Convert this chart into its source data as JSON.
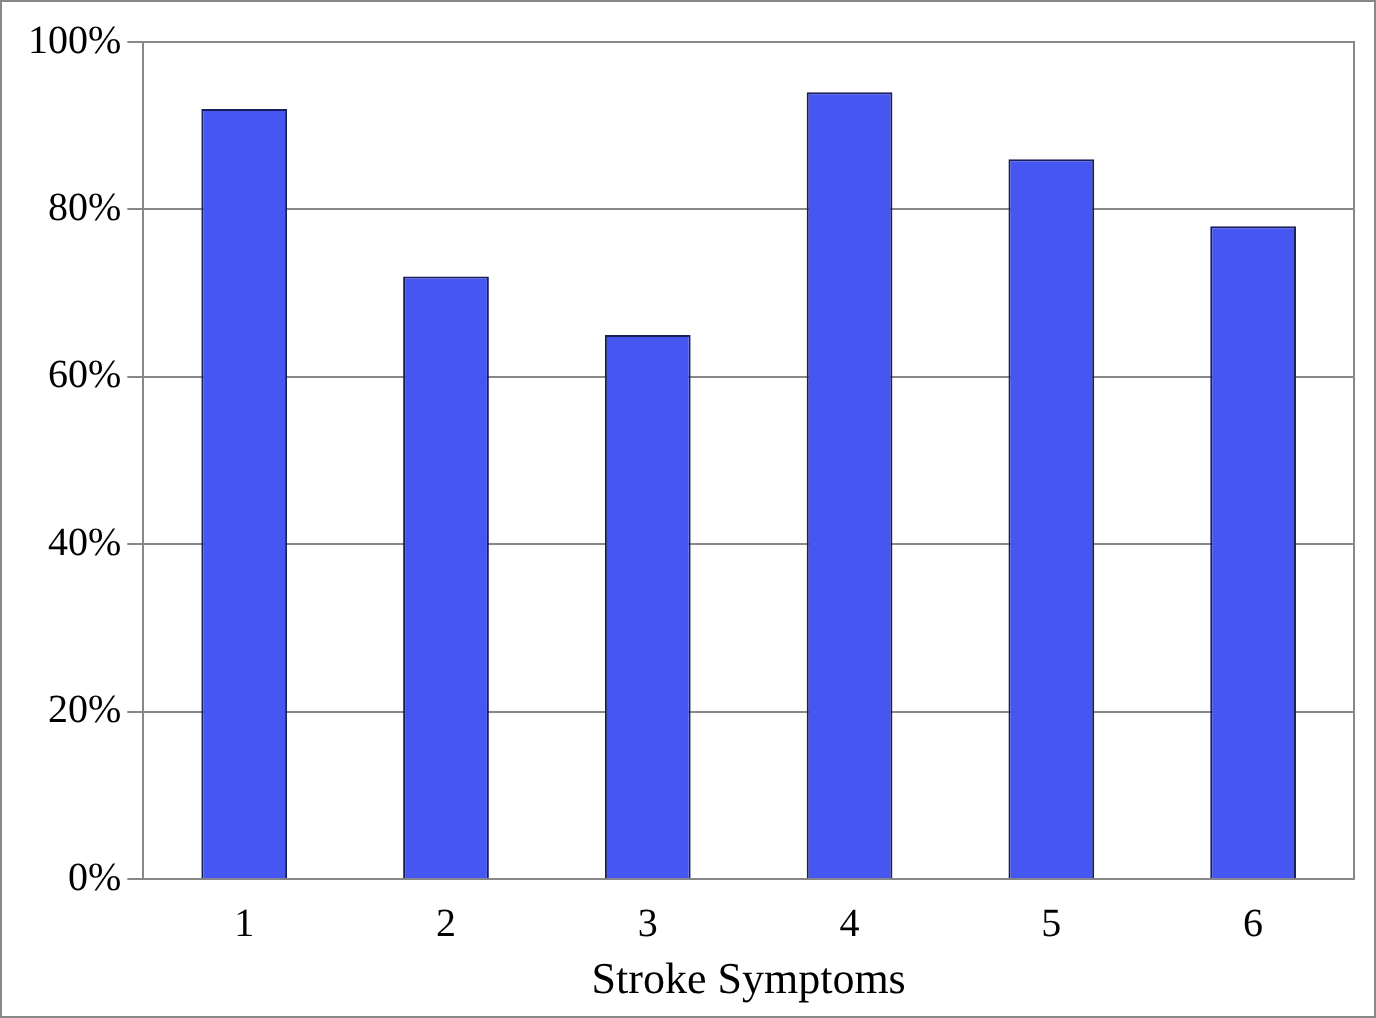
{
  "chart_data": {
    "type": "bar",
    "xlabel": "Stroke Symptoms",
    "categories": [
      "1",
      "2",
      "3",
      "4",
      "5",
      "6"
    ],
    "values": [
      92,
      72,
      65,
      94,
      86,
      78
    ],
    "color": "#4656f0",
    "ylim": [
      0,
      100
    ],
    "yticks": [
      {
        "value": 0,
        "label": "0%"
      },
      {
        "value": 20,
        "label": "20%"
      },
      {
        "value": 40,
        "label": "40%"
      },
      {
        "value": 60,
        "label": "60%"
      },
      {
        "value": 80,
        "label": "80%"
      },
      {
        "value": 100,
        "label": "100%"
      }
    ],
    "grid": "y",
    "legend": false
  }
}
